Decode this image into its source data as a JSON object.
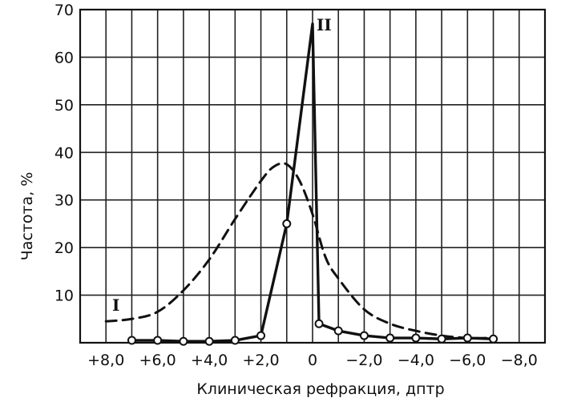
{
  "chart_data": {
    "type": "line",
    "title": "",
    "xlabel": "Клиническая рефракция, дптр",
    "ylabel": "Частота, %",
    "x_reversed": true,
    "xlim": [
      9.0,
      -9.0
    ],
    "ylim": [
      0,
      70
    ],
    "grid": true,
    "x_ticks": [
      8,
      6,
      4,
      2,
      0,
      -2,
      -4,
      -6,
      -8
    ],
    "x_tick_labels": [
      "+8,0",
      "+6,0",
      "+4,0",
      "+2,0",
      "0",
      "−2,0",
      "−4,0",
      "−6,0",
      "−8,0"
    ],
    "y_ticks": [
      10,
      20,
      30,
      40,
      50,
      60,
      70
    ],
    "y_tick_labels": [
      "10",
      "20",
      "30",
      "40",
      "50",
      "60",
      "70"
    ],
    "series": [
      {
        "name": "I",
        "style": "dashed",
        "x": [
          8.0,
          7.0,
          6.0,
          5.0,
          4.0,
          3.0,
          2.0,
          1.5,
          1.0,
          0.5,
          0.0,
          -0.5,
          -1.0,
          -2.0,
          -3.0,
          -4.0,
          -5.0,
          -6.0,
          -7.0
        ],
        "y": [
          4.5,
          5.0,
          6.5,
          11.0,
          17.5,
          26.0,
          34.0,
          37.0,
          37.5,
          34.0,
          27.0,
          18.0,
          13.5,
          7.0,
          4.0,
          2.5,
          1.5,
          1.0,
          1.0
        ]
      },
      {
        "name": "II",
        "style": "solid-markers",
        "x": [
          7.0,
          6.0,
          5.0,
          4.0,
          3.0,
          2.0,
          1.0,
          0.0,
          -0.25,
          -1.0,
          -2.0,
          -3.0,
          -4.0,
          -5.0,
          -6.0,
          -7.0
        ],
        "y": [
          0.5,
          0.5,
          0.3,
          0.3,
          0.5,
          1.5,
          25.0,
          67.0,
          4.0,
          2.5,
          1.5,
          1.0,
          1.0,
          0.8,
          1.0,
          0.8
        ]
      }
    ],
    "annotations": [
      "I",
      "II"
    ]
  }
}
